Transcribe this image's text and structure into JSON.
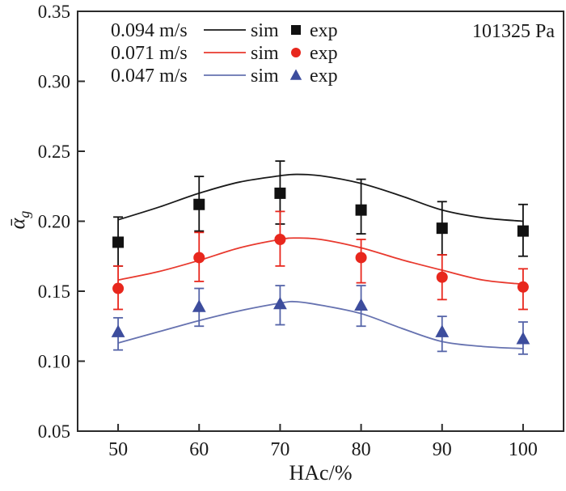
{
  "annotation": {
    "pressure": "101325 Pa"
  },
  "axes": {
    "x": {
      "label": "HAc/%",
      "ticks": [
        "50",
        "60",
        "70",
        "80",
        "90",
        "100"
      ]
    },
    "y": {
      "label_main": "ᾱ",
      "label_sub": "g",
      "ticks": [
        "0.05",
        "0.10",
        "0.15",
        "0.20",
        "0.25",
        "0.30",
        "0.35"
      ]
    }
  },
  "legend": {
    "position": "top-left",
    "rows": [
      {
        "velocity": "0.094 m/s",
        "sim_label": "sim",
        "exp_label": "exp",
        "marker": "square",
        "line_color": "#1a1a1a",
        "marker_color": "#111111"
      },
      {
        "velocity": "0.071 m/s",
        "sim_label": "sim",
        "exp_label": "exp",
        "marker": "circle",
        "line_color": "#e8392e",
        "marker_color": "#e8271d"
      },
      {
        "velocity": "0.047 m/s",
        "sim_label": "sim",
        "exp_label": "exp",
        "marker": "triangle",
        "line_color": "#6672b0",
        "marker_color": "#3d4d9d"
      }
    ]
  },
  "chart_data": {
    "type": "line",
    "title": "",
    "xlabel": "HAc/%",
    "ylabel": "ᾱg",
    "xlim": [
      45,
      105
    ],
    "ylim": [
      0.05,
      0.35
    ],
    "x": [
      50,
      60,
      70,
      80,
      90,
      100
    ],
    "grid": false,
    "legend_position": "top-left",
    "annotation": "101325 Pa",
    "series": [
      {
        "name": "0.094 m/s",
        "marker": "square",
        "line_color": "#1a1a1a",
        "marker_color": "#111111",
        "bar_color": "#111111",
        "exp": [
          0.185,
          0.212,
          0.22,
          0.208,
          0.195,
          0.193
        ],
        "err_up": [
          0.018,
          0.02,
          0.023,
          0.022,
          0.019,
          0.019
        ],
        "err_down": [
          0.017,
          0.019,
          0.022,
          0.017,
          0.019,
          0.018
        ],
        "sim_x": [
          50,
          55,
          60,
          65,
          70,
          72,
          75,
          80,
          85,
          90,
          95,
          100
        ],
        "sim_y": [
          0.201,
          0.21,
          0.22,
          0.228,
          0.2325,
          0.2335,
          0.2325,
          0.227,
          0.218,
          0.208,
          0.2025,
          0.2
        ]
      },
      {
        "name": "0.071 m/s",
        "marker": "circle",
        "line_color": "#e8392e",
        "marker_color": "#e8271d",
        "bar_color": "#e8271d",
        "exp": [
          0.152,
          0.174,
          0.187,
          0.174,
          0.16,
          0.153
        ],
        "err_up": [
          0.016,
          0.018,
          0.02,
          0.013,
          0.016,
          0.013
        ],
        "err_down": [
          0.015,
          0.017,
          0.019,
          0.018,
          0.016,
          0.016
        ],
        "sim_x": [
          50,
          55,
          60,
          65,
          70,
          72,
          75,
          80,
          85,
          90,
          95,
          100
        ],
        "sim_y": [
          0.158,
          0.164,
          0.172,
          0.181,
          0.187,
          0.188,
          0.187,
          0.181,
          0.1725,
          0.165,
          0.158,
          0.155
        ]
      },
      {
        "name": "0.047 m/s",
        "marker": "triangle",
        "line_color": "#6672b0",
        "marker_color": "#3d4d9d",
        "bar_color": "#5564a8",
        "exp": [
          0.121,
          0.139,
          0.141,
          0.14,
          0.121,
          0.116
        ],
        "err_up": [
          0.01,
          0.013,
          0.013,
          0.014,
          0.011,
          0.012
        ],
        "err_down": [
          0.013,
          0.014,
          0.015,
          0.015,
          0.014,
          0.011
        ],
        "sim_x": [
          50,
          55,
          60,
          65,
          70,
          72,
          75,
          80,
          85,
          90,
          95,
          100
        ],
        "sim_y": [
          0.113,
          0.121,
          0.129,
          0.136,
          0.1415,
          0.1425,
          0.14,
          0.134,
          0.1235,
          0.114,
          0.1105,
          0.109
        ]
      }
    ]
  }
}
